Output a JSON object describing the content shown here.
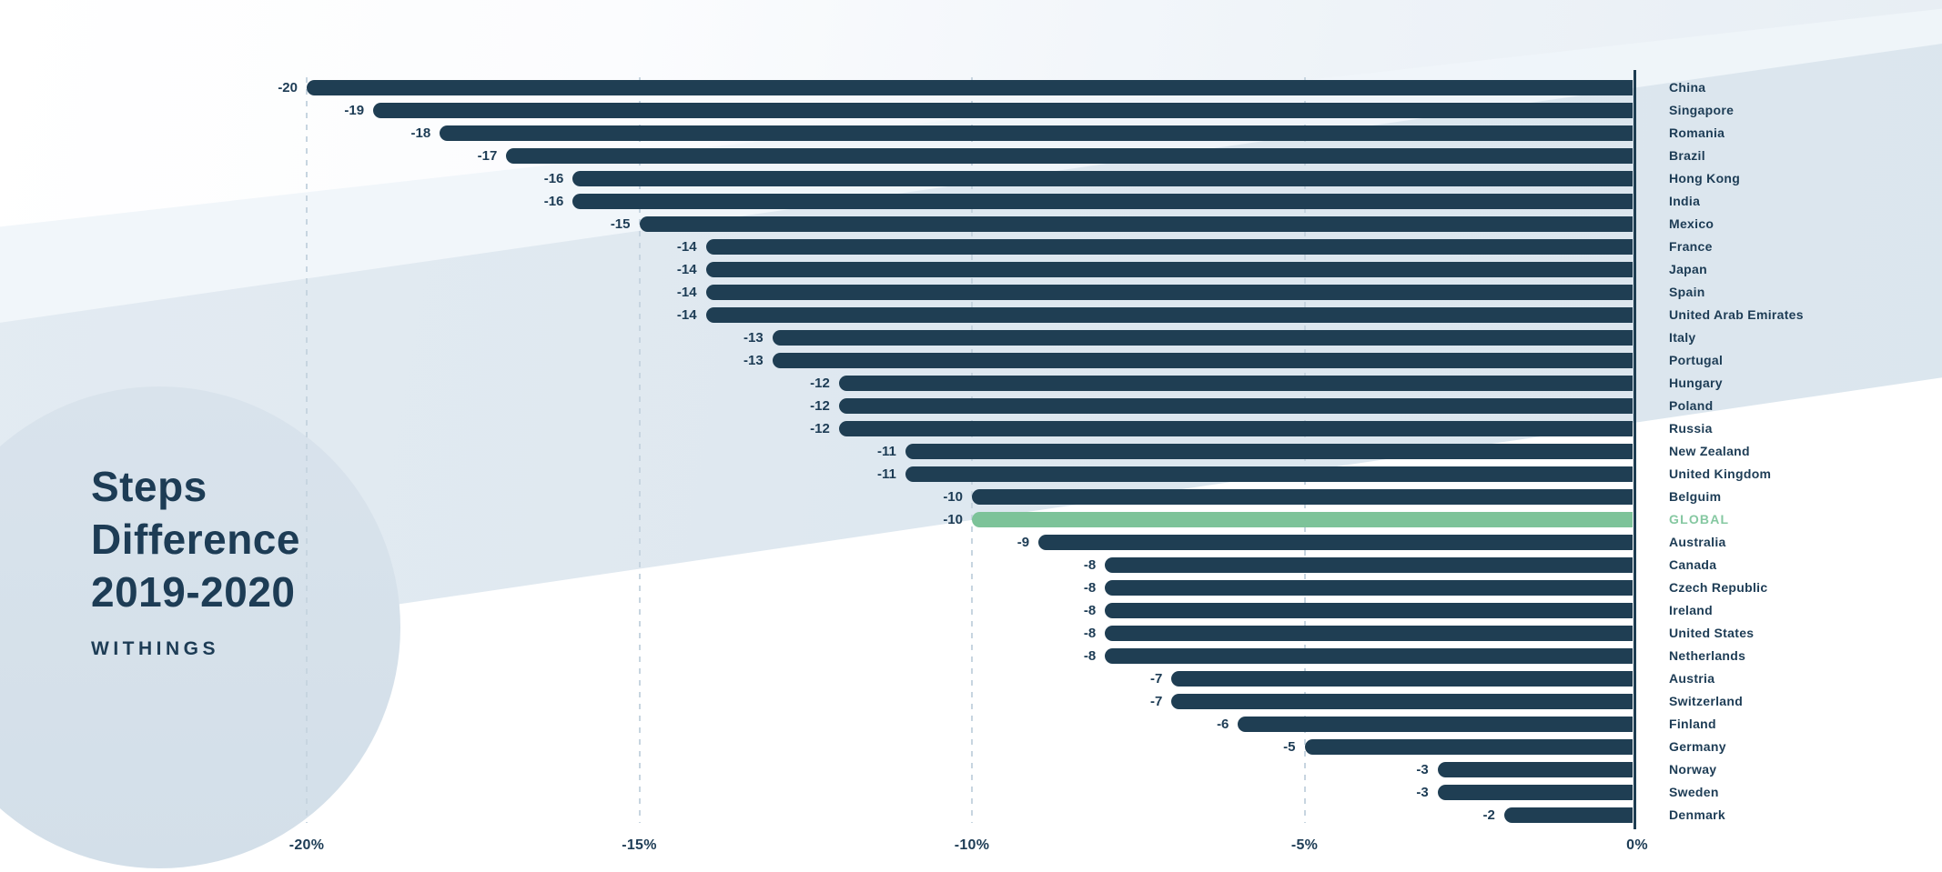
{
  "header": {
    "title_text": "Steps\nDifference\n2019-2020",
    "brand": "WITHINGS"
  },
  "colors": {
    "bar_default": "#1f3e53",
    "bar_highlight": "#7dc399",
    "text_navy": "#1d3c55",
    "highlight_label_text": "#85c8a1",
    "gridline": "#c7d5e0",
    "axis_line": "#1e3d52",
    "background_band": "#dde7ef",
    "background_circle": "#d5e0e9"
  },
  "chart_data": {
    "type": "bar",
    "orientation": "horizontal",
    "title": "Steps Difference 2019-2020",
    "subtitle": "WITHINGS",
    "categories": [
      "China",
      "Singapore",
      "Romania",
      "Brazil",
      "Hong Kong",
      "India",
      "Mexico",
      "France",
      "Japan",
      "Spain",
      "United Arab Emirates",
      "Italy",
      "Portugal",
      "Hungary",
      "Poland",
      "Russia",
      "New Zealand",
      "United Kingdom",
      "Belguim",
      "GLOBAL",
      "Australia",
      "Canada",
      "Czech Republic",
      "Ireland",
      "United States",
      "Netherlands",
      "Austria",
      "Switzerland",
      "Finland",
      "Germany",
      "Norway",
      "Sweden",
      "Denmark"
    ],
    "values": [
      -20,
      -19,
      -18,
      -17,
      -16,
      -16,
      -15,
      -14,
      -14,
      -14,
      -14,
      -13,
      -13,
      -12,
      -12,
      -12,
      -11,
      -11,
      -10,
      -10,
      -9,
      -8,
      -8,
      -8,
      -8,
      -8,
      -7,
      -7,
      -6,
      -5,
      -3,
      -3,
      -2
    ],
    "value_labels": [
      "-20",
      "-19",
      "-18",
      "-17",
      "-16",
      "-16",
      "-15",
      "-14",
      "-14",
      "-14",
      "-14",
      "-13",
      "-13",
      "-12",
      "-12",
      "-12",
      "-11",
      "-11",
      "-10",
      "-10",
      "-9",
      "-8",
      "-8",
      "-8",
      "-8",
      "-8",
      "-7",
      "-7",
      "-6",
      "-5",
      "-3",
      "-3",
      "-2"
    ],
    "highlight_category": "GLOBAL",
    "unit": "%",
    "x_ticks": [
      {
        "value": -20,
        "label": "-20%"
      },
      {
        "value": -15,
        "label": "-15%"
      },
      {
        "value": -10,
        "label": "-10%"
      },
      {
        "value": -5,
        "label": "-5%"
      },
      {
        "value": 0,
        "label": "0%"
      }
    ],
    "xlim": [
      -21,
      0
    ],
    "grid": "dashed-vertical",
    "legend": "none",
    "value_label_position": "left-of-bar",
    "category_label_position": "right-of-plot"
  }
}
